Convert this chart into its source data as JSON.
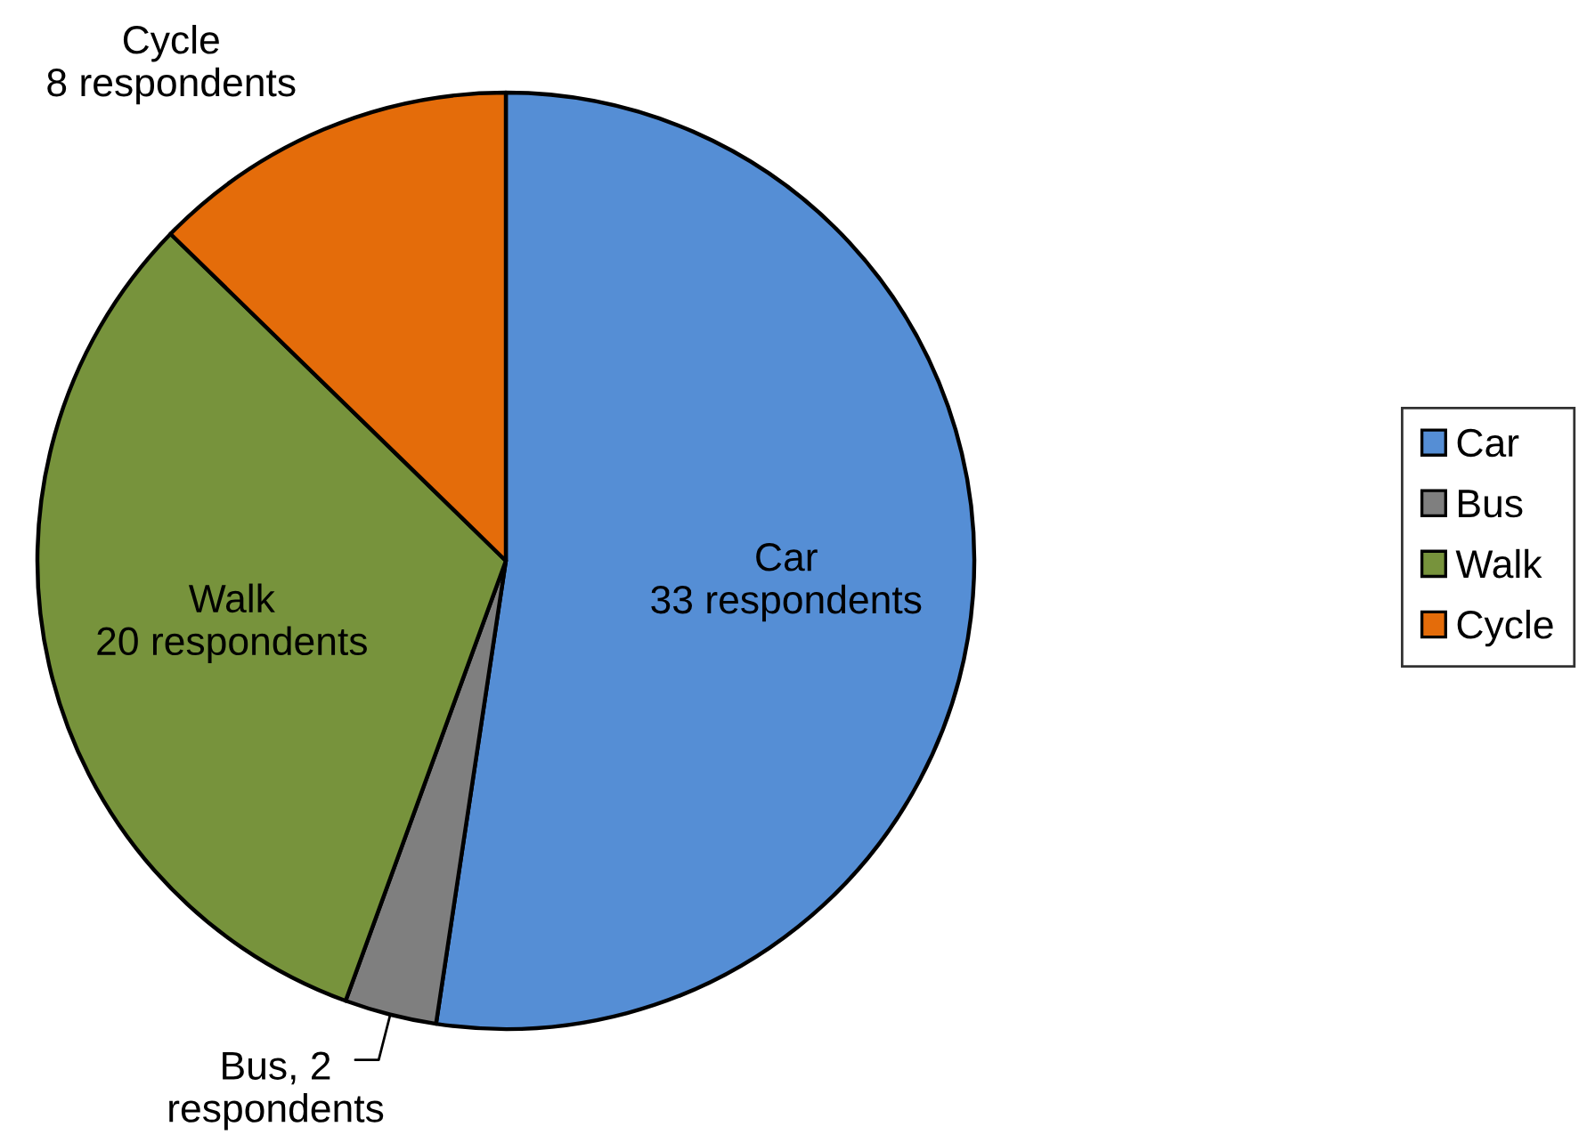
{
  "chart_data": {
    "type": "pie",
    "categories": [
      "Car",
      "Bus",
      "Walk",
      "Cycle"
    ],
    "values": [
      33,
      2,
      20,
      8
    ],
    "colors": [
      "#558ed5",
      "#7f7f7f",
      "#77933c",
      "#e46c0a"
    ],
    "value_labels": [
      "Car\n33 respondents",
      "Bus, 2\nrespondents",
      "Walk\n20 respondents",
      "Cycle\n8 respondents"
    ],
    "legend": "right"
  }
}
